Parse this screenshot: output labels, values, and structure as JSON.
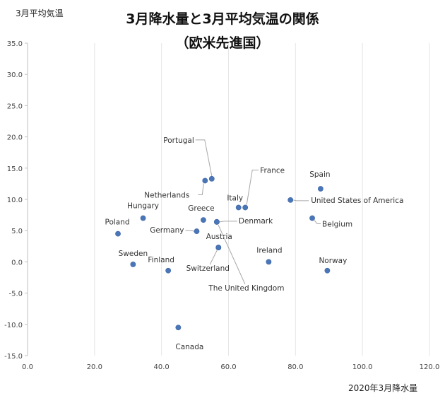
{
  "chart_data": {
    "type": "scatter",
    "title": "3月降水量と3月平均気温の関係",
    "subtitle": "（欧米先進国）",
    "xlabel": "2020年3月降水量",
    "ylabel": "3月平均気温",
    "xlim": [
      0,
      120
    ],
    "ylim": [
      -15,
      35
    ],
    "xticks": [
      "0.0",
      "20.0",
      "40.0",
      "60.0",
      "80.0",
      "100.0",
      "120.0"
    ],
    "yticks": [
      "35.0",
      "30.0",
      "25.0",
      "20.0",
      "15.0",
      "10.0",
      "5.0",
      "0.0",
      "-5.0",
      "-10.0",
      "-15.0"
    ],
    "grid": "vertical",
    "marker_color": "#4a76b8",
    "points": [
      {
        "label": "Portugal",
        "x": 55.0,
        "y": 13.3
      },
      {
        "label": "France",
        "x": 65.0,
        "y": 8.7
      },
      {
        "label": "Spain",
        "x": 87.5,
        "y": 11.7
      },
      {
        "label": "Netherlands",
        "x": 53.0,
        "y": 13.0
      },
      {
        "label": "Italy",
        "x": 63.0,
        "y": 8.7
      },
      {
        "label": "United States of America",
        "x": 78.5,
        "y": 9.9
      },
      {
        "label": "Hungary",
        "x": 34.5,
        "y": 7.0
      },
      {
        "label": "Greece",
        "x": 52.5,
        "y": 6.7
      },
      {
        "label": "Denmark",
        "x": 56.5,
        "y": 6.4
      },
      {
        "label": "Poland",
        "x": 27.0,
        "y": 4.5
      },
      {
        "label": "Belgium",
        "x": 85.0,
        "y": 7.0
      },
      {
        "label": "Germany",
        "x": 50.5,
        "y": 4.9
      },
      {
        "label": "Austria",
        "x": 57.0,
        "y": 2.3
      },
      {
        "label": "Sweden",
        "x": 31.5,
        "y": -0.4
      },
      {
        "label": "Finland",
        "x": 42.0,
        "y": -1.4
      },
      {
        "label": "Ireland",
        "x": 72.0,
        "y": 0.0
      },
      {
        "label": "Norway",
        "x": 89.5,
        "y": -1.4
      },
      {
        "label": "Switzerland",
        "x": 57.0,
        "y": 2.3
      },
      {
        "label": "The United Kingdom",
        "x": 56.5,
        "y": 6.4
      },
      {
        "label": "Canada",
        "x": 45.0,
        "y": -10.5
      }
    ]
  }
}
